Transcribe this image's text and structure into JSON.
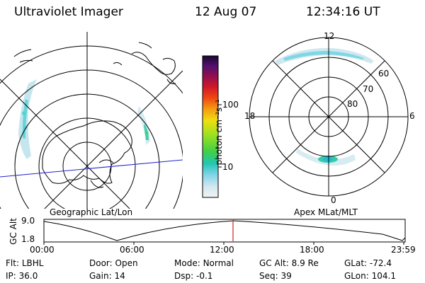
{
  "header": {
    "title": "Ultraviolet Imager",
    "date": "12 Aug 07",
    "time": "12:34:16 UT"
  },
  "colorbar": {
    "label": "photon cm⁻²s⁻¹",
    "ticks": [
      "100",
      "10"
    ]
  },
  "left_panel": {
    "label": "Geographic Lat/Lon"
  },
  "right_panel": {
    "label": "Apex MLat/MLT",
    "mlt_labels": {
      "top": "12",
      "left": "18",
      "right": "6",
      "bottom": "0"
    },
    "lat_labels": [
      "60",
      "70",
      "80"
    ]
  },
  "altitude_plot": {
    "ylabel": "GC Alt",
    "yticks": [
      "9.0",
      "1.8"
    ],
    "xticks": [
      "00:00",
      "06:00",
      "12:00",
      "18:00",
      "23:59"
    ],
    "marker_time": "12:34:16",
    "marker_color": "#cc2222"
  },
  "info": {
    "row1": [
      {
        "label": "Flt:",
        "value": "LBHL"
      },
      {
        "label": "Door:",
        "value": "Open"
      },
      {
        "label": "Mode:",
        "value": "Normal"
      },
      {
        "label": "GC Alt:",
        "value": "8.9 Re"
      },
      {
        "label": "GLat:",
        "value": "-72.4"
      }
    ],
    "row2": [
      {
        "label": "IP:",
        "value": "36.0"
      },
      {
        "label": "Gain:",
        "value": "14"
      },
      {
        "label": "Dsp:",
        "value": "-0.1"
      },
      {
        "label": "Seq:",
        "value": "39"
      },
      {
        "label": "GLon:",
        "value": "104.1"
      }
    ]
  }
}
